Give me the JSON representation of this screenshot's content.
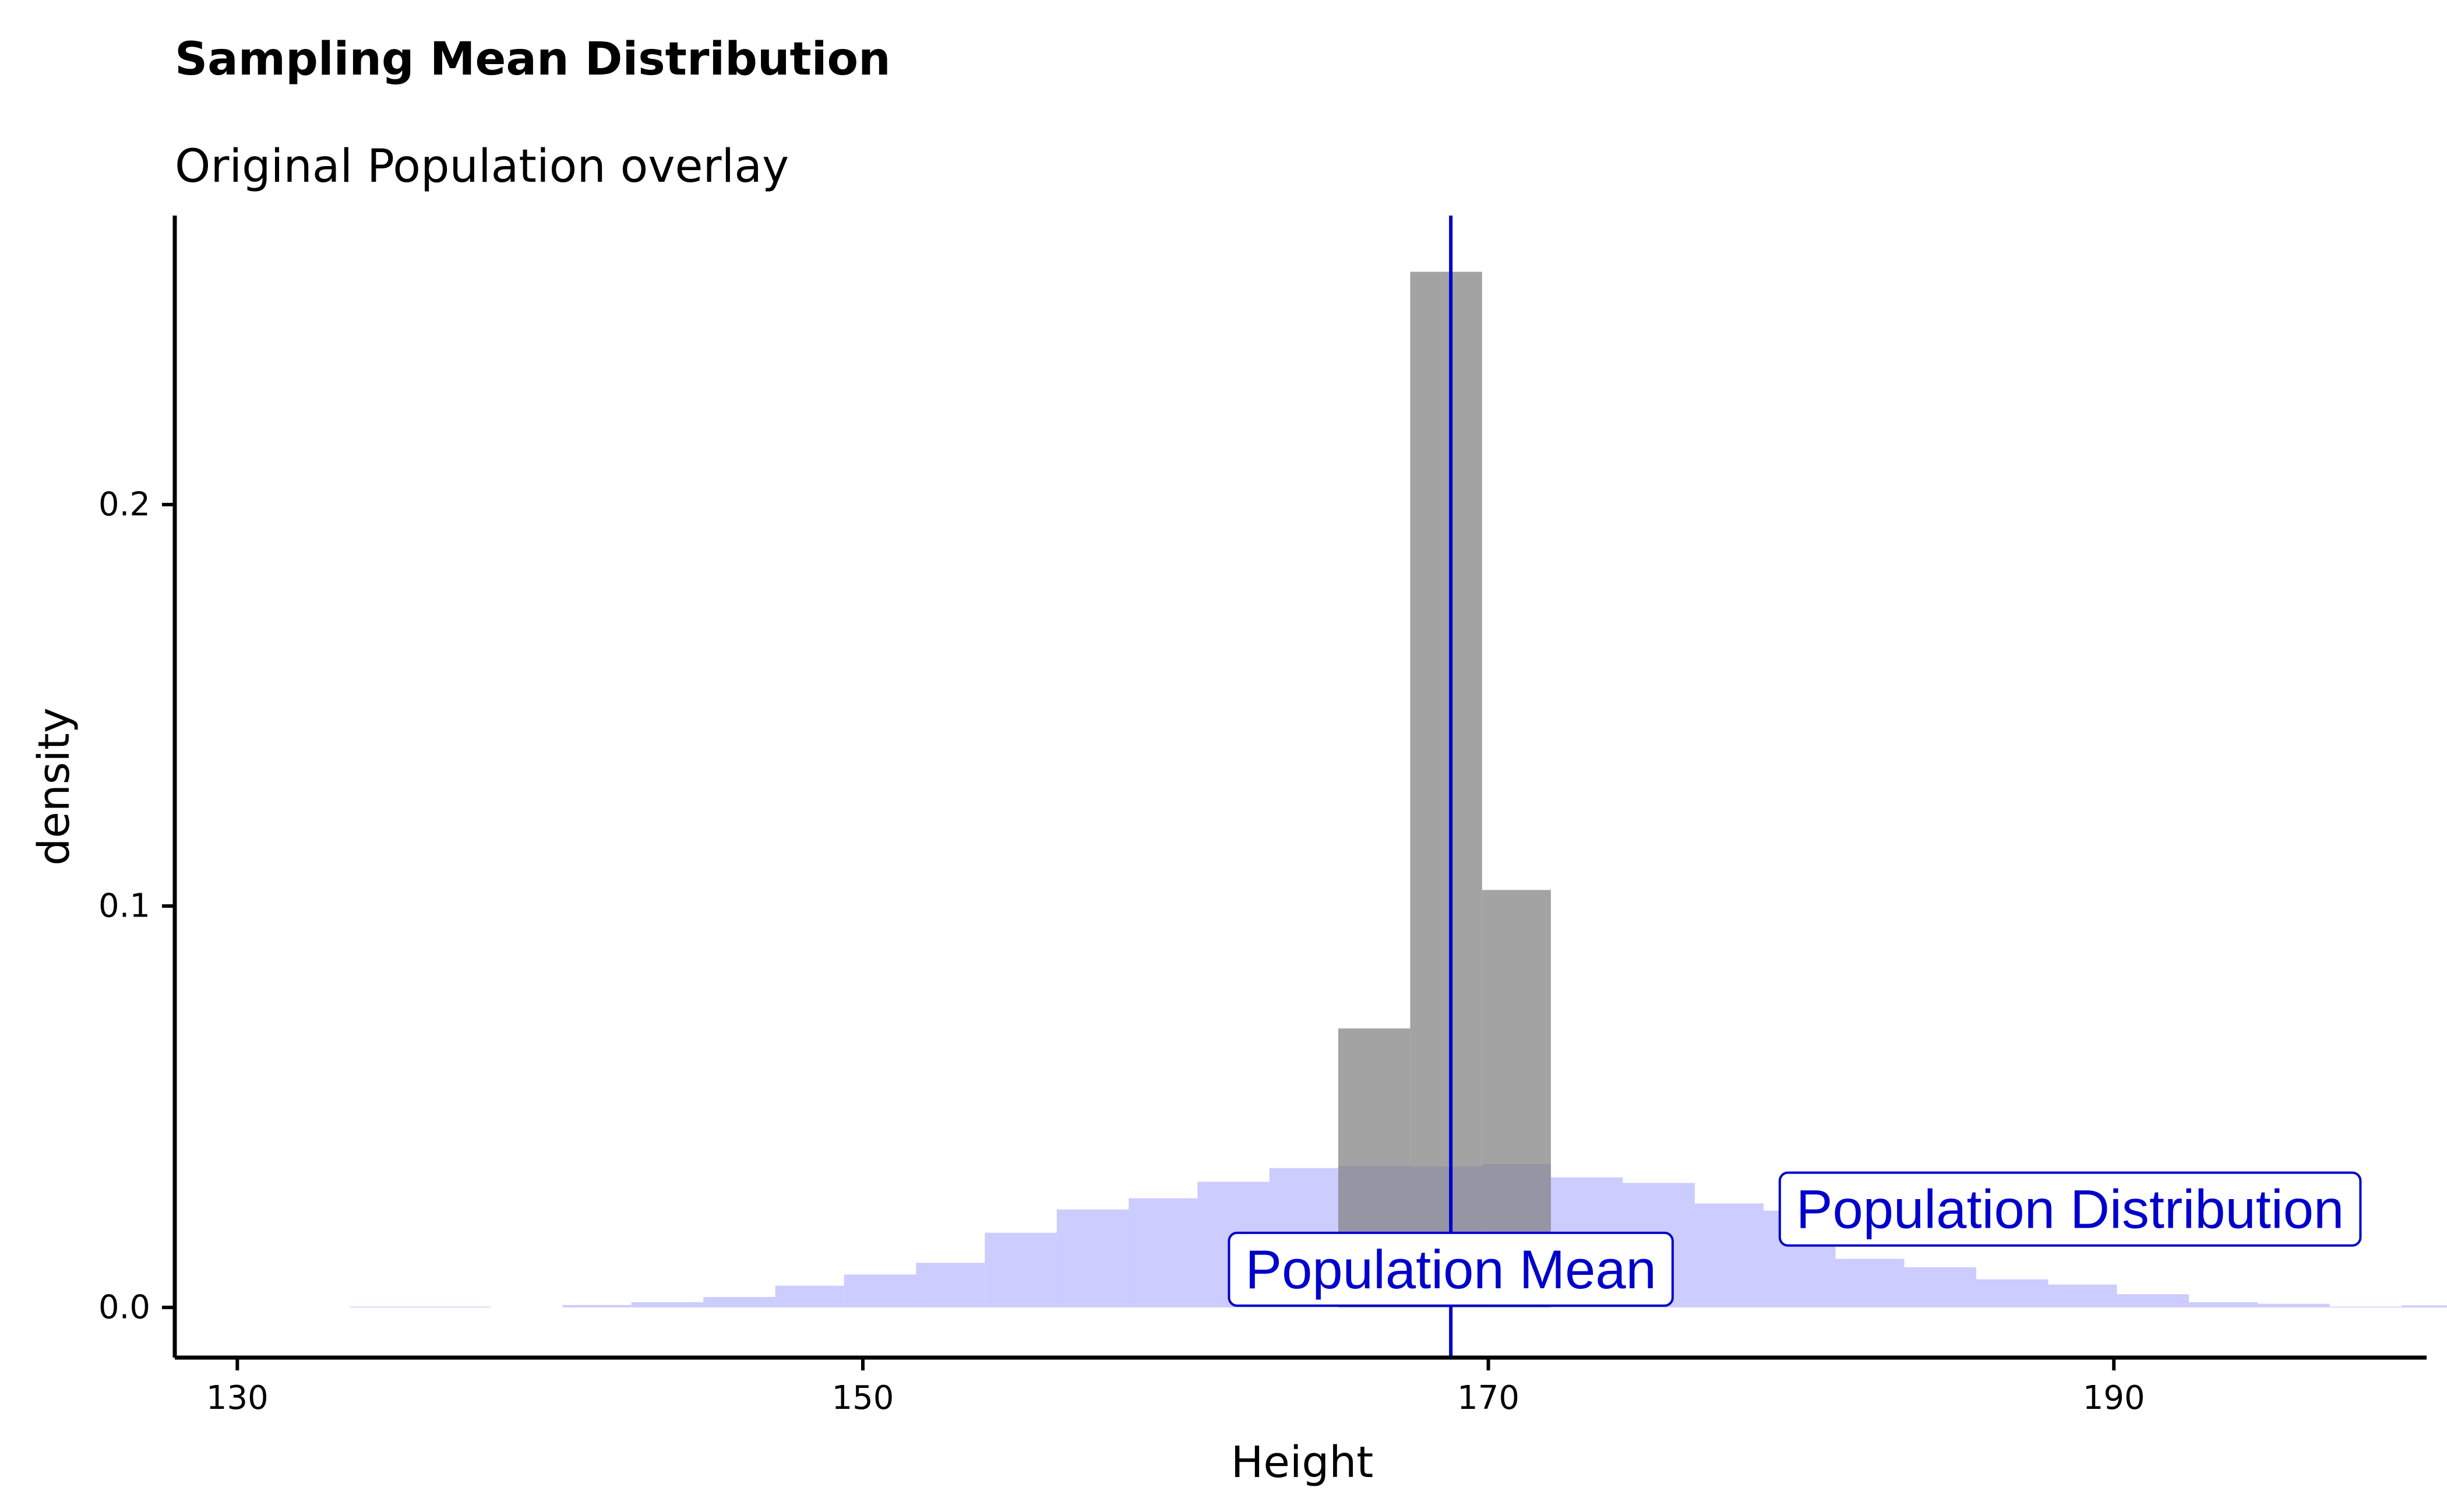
{
  "chart_data": {
    "type": "bar",
    "title": "Sampling Mean Distribution",
    "subtitle": "Original Population overlay",
    "xlabel": "Height",
    "ylabel": "density",
    "xlim": [
      128,
      200
    ],
    "ylim": [
      -0.0125,
      0.272
    ],
    "x_ticks": [
      130,
      150,
      170,
      190
    ],
    "y_ticks": [
      0.0,
      0.1,
      0.2
    ],
    "x_tick_labels": [
      "130",
      "150",
      "170",
      "190"
    ],
    "y_tick_labels": [
      "0.0",
      "0.1",
      "0.2"
    ],
    "grid": false,
    "series": [
      {
        "role": "population",
        "color": "#9999ff",
        "opacity": 0.5,
        "bins": [
          {
            "x0": 133.6,
            "x1": 135.9,
            "density": 0.0002
          },
          {
            "x0": 135.9,
            "x1": 138.1,
            "density": 0.0002
          },
          {
            "x0": 140.4,
            "x1": 142.6,
            "density": 0.0006
          },
          {
            "x0": 142.6,
            "x1": 144.9,
            "density": 0.0013
          },
          {
            "x0": 144.9,
            "x1": 147.2,
            "density": 0.0026
          },
          {
            "x0": 147.2,
            "x1": 149.4,
            "density": 0.0054
          },
          {
            "x0": 149.4,
            "x1": 151.7,
            "density": 0.0082
          },
          {
            "x0": 151.7,
            "x1": 153.9,
            "density": 0.0111
          },
          {
            "x0": 153.9,
            "x1": 156.2,
            "density": 0.0186
          },
          {
            "x0": 156.2,
            "x1": 158.5,
            "density": 0.0244
          },
          {
            "x0": 158.5,
            "x1": 160.7,
            "density": 0.0272
          },
          {
            "x0": 160.7,
            "x1": 163.0,
            "density": 0.0313
          },
          {
            "x0": 163.0,
            "x1": 165.2,
            "density": 0.0347
          },
          {
            "x0": 165.2,
            "x1": 167.5,
            "density": 0.0352
          },
          {
            "x0": 167.5,
            "x1": 169.8,
            "density": 0.0351
          },
          {
            "x0": 169.8,
            "x1": 172.0,
            "density": 0.0357
          },
          {
            "x0": 172.0,
            "x1": 174.3,
            "density": 0.0324
          },
          {
            "x0": 174.3,
            "x1": 176.6,
            "density": 0.031
          },
          {
            "x0": 176.6,
            "x1": 178.8,
            "density": 0.0259
          },
          {
            "x0": 178.8,
            "x1": 181.1,
            "density": 0.0241
          },
          {
            "x0": 181.1,
            "x1": 183.3,
            "density": 0.0121
          },
          {
            "x0": 183.3,
            "x1": 185.6,
            "density": 0.01
          },
          {
            "x0": 185.6,
            "x1": 187.9,
            "density": 0.007
          },
          {
            "x0": 187.9,
            "x1": 190.1,
            "density": 0.0057
          },
          {
            "x0": 190.1,
            "x1": 192.4,
            "density": 0.0033
          },
          {
            "x0": 192.4,
            "x1": 194.6,
            "density": 0.0013
          },
          {
            "x0": 194.6,
            "x1": 196.9,
            "density": 0.0009
          },
          {
            "x0": 196.9,
            "x1": 199.2,
            "density": 0.0002
          },
          {
            "x0": 199.2,
            "x1": 201.4,
            "density": 0.0005
          }
        ]
      },
      {
        "role": "sampling-means",
        "color": "#808080",
        "opacity": 0.72,
        "bins": [
          {
            "x0": 165.2,
            "x1": 167.5,
            "density": 0.0695
          },
          {
            "x0": 167.5,
            "x1": 169.8,
            "density": 0.258
          },
          {
            "x0": 169.8,
            "x1": 172.0,
            "density": 0.104
          }
        ]
      }
    ],
    "reference_line": {
      "x": 168.8,
      "color": "#0000cc"
    },
    "annotations": [
      {
        "text": "Population Mean",
        "x": 168.8,
        "y": 0.0095,
        "color": "#0000cc"
      },
      {
        "text": "Population Distribution",
        "x": 188.6,
        "y": 0.0245,
        "color": "#0000cc"
      }
    ]
  }
}
